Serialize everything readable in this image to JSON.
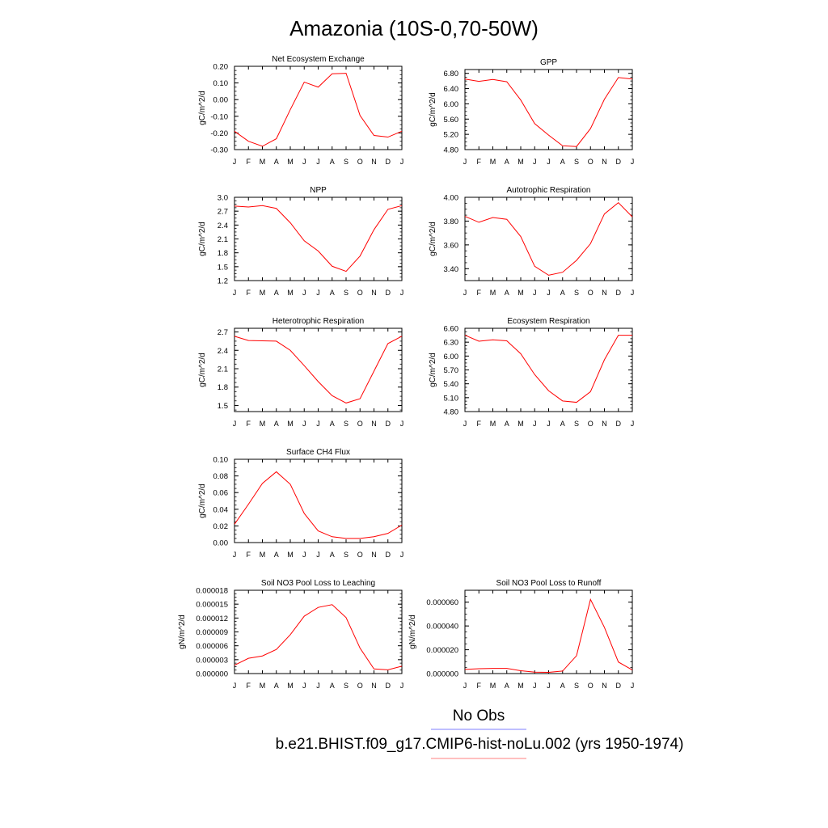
{
  "figure": {
    "title": "Amazonia (10S-0,70-50W)",
    "legend": [
      {
        "label": "No Obs",
        "color": "#7f7fff"
      },
      {
        "label": "b.e21.BHIST.f09_g17.CMIP6-hist-noLu.002 (yrs 1950-1974)",
        "color": "#ff8080"
      }
    ]
  },
  "line_color": "#ff0000",
  "chart_data": [
    {
      "type": "line",
      "title": "Net Ecosystem Exchange",
      "ylabel": "gC/m^2/d",
      "x": [
        "J",
        "F",
        "M",
        "A",
        "M",
        "J",
        "J",
        "A",
        "S",
        "O",
        "N",
        "D",
        "J"
      ],
      "ylim": [
        -0.3,
        0.2
      ],
      "yticks": [
        "0.20",
        "0.10",
        "0.00",
        "-0.10",
        "-0.20",
        "-0.30"
      ],
      "series": [
        {
          "values": [
            -0.19,
            -0.25,
            -0.28,
            -0.235,
            -0.06,
            0.105,
            0.075,
            0.155,
            0.158,
            -0.095,
            -0.215,
            -0.225,
            -0.19
          ]
        }
      ]
    },
    {
      "type": "line",
      "title": "GPP",
      "ylabel": "gC/m^2/d",
      "x": [
        "J",
        "F",
        "M",
        "A",
        "M",
        "J",
        "J",
        "A",
        "S",
        "O",
        "N",
        "D",
        "J"
      ],
      "ylim": [
        4.8,
        6.9
      ],
      "yticks": [
        "6.80",
        "6.40",
        "6.00",
        "5.60",
        "5.20",
        "4.80"
      ],
      "series": [
        {
          "values": [
            6.65,
            6.59,
            6.64,
            6.58,
            6.1,
            5.48,
            5.18,
            4.9,
            4.88,
            5.35,
            6.12,
            6.69,
            6.65
          ]
        }
      ]
    },
    {
      "type": "line",
      "title": "NPP",
      "ylabel": "gC/m^2/d",
      "x": [
        "J",
        "F",
        "M",
        "A",
        "M",
        "J",
        "J",
        "A",
        "S",
        "O",
        "N",
        "D",
        "J"
      ],
      "ylim": [
        1.2,
        3.0
      ],
      "yticks": [
        "3.0",
        "2.7",
        "2.4",
        "2.1",
        "1.8",
        "1.5",
        "1.2"
      ],
      "series": [
        {
          "values": [
            2.81,
            2.79,
            2.82,
            2.76,
            2.45,
            2.06,
            1.84,
            1.51,
            1.4,
            1.73,
            2.3,
            2.74,
            2.82
          ]
        }
      ]
    },
    {
      "type": "line",
      "title": "Autotrophic Respiration",
      "ylabel": "gC/m^2/d",
      "x": [
        "J",
        "F",
        "M",
        "A",
        "M",
        "J",
        "J",
        "A",
        "S",
        "O",
        "N",
        "D",
        "J"
      ],
      "ylim": [
        3.3,
        4.0
      ],
      "yticks": [
        "4.00",
        "3.80",
        "3.60",
        "3.40"
      ],
      "series": [
        {
          "values": [
            3.84,
            3.79,
            3.83,
            3.815,
            3.67,
            3.42,
            3.345,
            3.37,
            3.47,
            3.61,
            3.86,
            3.955,
            3.835
          ]
        }
      ]
    },
    {
      "type": "line",
      "title": "Heterotrophic Respiration",
      "ylabel": "gC/m^2/d",
      "x": [
        "J",
        "F",
        "M",
        "A",
        "M",
        "J",
        "J",
        "A",
        "S",
        "O",
        "N",
        "D",
        "J"
      ],
      "ylim": [
        1.4,
        2.76
      ],
      "yticks": [
        "2.7",
        "2.4",
        "2.1",
        "1.8",
        "1.5"
      ],
      "series": [
        {
          "values": [
            2.63,
            2.56,
            2.555,
            2.55,
            2.4,
            2.15,
            1.89,
            1.66,
            1.54,
            1.61,
            2.06,
            2.51,
            2.63
          ]
        }
      ]
    },
    {
      "type": "line",
      "title": "Ecosystem Respiration",
      "ylabel": "gC/m^2/d",
      "x": [
        "J",
        "F",
        "M",
        "A",
        "M",
        "J",
        "J",
        "A",
        "S",
        "O",
        "N",
        "D",
        "J"
      ],
      "ylim": [
        4.8,
        6.6
      ],
      "yticks": [
        "6.60",
        "6.30",
        "6.00",
        "5.70",
        "5.40",
        "5.10",
        "4.80"
      ],
      "series": [
        {
          "values": [
            6.45,
            6.32,
            6.35,
            6.33,
            6.05,
            5.6,
            5.25,
            5.03,
            5.0,
            5.23,
            5.92,
            6.45,
            6.45
          ]
        }
      ]
    },
    {
      "type": "line",
      "title": "Surface CH4 Flux",
      "ylabel": "gC/m^2/d",
      "x": [
        "J",
        "F",
        "M",
        "A",
        "M",
        "J",
        "J",
        "A",
        "S",
        "O",
        "N",
        "D",
        "J"
      ],
      "ylim": [
        0.0,
        0.1
      ],
      "yticks": [
        "0.10",
        "0.08",
        "0.06",
        "0.04",
        "0.02",
        "0.00"
      ],
      "series": [
        {
          "values": [
            0.022,
            0.046,
            0.071,
            0.085,
            0.07,
            0.035,
            0.014,
            0.007,
            0.005,
            0.005,
            0.007,
            0.011,
            0.021
          ]
        }
      ]
    },
    {
      "type": "line",
      "title": "Soil NO3 Pool Loss to Leaching",
      "ylabel": "gN/m^2/d",
      "x": [
        "J",
        "F",
        "M",
        "A",
        "M",
        "J",
        "J",
        "A",
        "S",
        "O",
        "N",
        "D",
        "J"
      ],
      "ylim": [
        0.0,
        1.8e-05
      ],
      "yticks": [
        "0.000018",
        "0.000015",
        "0.000012",
        "0.000009",
        "0.000006",
        "0.000003",
        "0.000000"
      ],
      "series": [
        {
          "values": [
            1.8e-06,
            3.3e-06,
            3.8e-06,
            5.2e-06,
            8.4e-06,
            1.24e-05,
            1.43e-05,
            1.49e-05,
            1.21e-05,
            5.5e-06,
            1e-06,
            8e-07,
            1.6e-06
          ]
        }
      ]
    },
    {
      "type": "line",
      "title": "Soil NO3 Pool Loss to Runoff",
      "ylabel": "gN/m^2/d",
      "x": [
        "J",
        "F",
        "M",
        "A",
        "M",
        "J",
        "J",
        "A",
        "S",
        "O",
        "N",
        "D",
        "J"
      ],
      "ylim": [
        0.0,
        7e-05
      ],
      "yticks": [
        "0.000060",
        "0.000040",
        "0.000020",
        "0.000000"
      ],
      "series": [
        {
          "values": [
            3.5e-06,
            4.1e-06,
            4.3e-06,
            4.3e-06,
            2.4e-06,
            1.2e-06,
            1e-06,
            2.1e-06,
            1.5e-05,
            6.23e-05,
            3.88e-05,
            9.7e-06,
            3e-06
          ]
        }
      ]
    }
  ]
}
